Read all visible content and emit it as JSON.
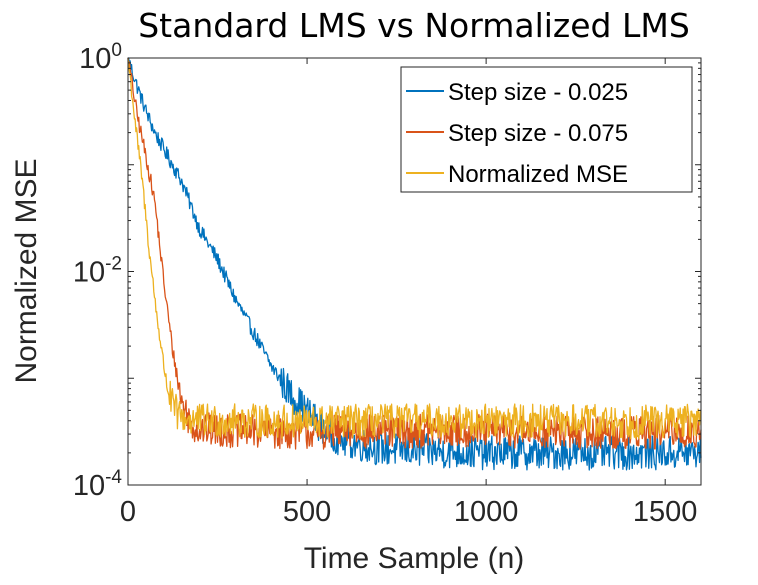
{
  "chart_data": {
    "type": "line",
    "title": "Standard LMS vs Normalized LMS",
    "xlabel": "Time Sample (n)",
    "ylabel": "Normalized MSE",
    "xlim": [
      0,
      1600
    ],
    "ylim": [
      0.0001,
      1
    ],
    "y_scale": "log",
    "grid": false,
    "x_ticks": [
      {
        "value": 0,
        "label": "0"
      },
      {
        "value": 500,
        "label": "500"
      },
      {
        "value": 1000,
        "label": "1000"
      },
      {
        "value": 1500,
        "label": "1500"
      }
    ],
    "y_ticks": [
      {
        "value": 0.0001,
        "base": "10",
        "exp": "-4"
      },
      {
        "value": 0.01,
        "base": "10",
        "exp": "-2"
      },
      {
        "value": 1,
        "base": "10",
        "exp": "0"
      }
    ],
    "legend_position": "top-right",
    "series": [
      {
        "name": "Step size - 0.025",
        "color": "#0072BD",
        "x": [
          0,
          25,
          50,
          75,
          100,
          150,
          200,
          250,
          300,
          350,
          400,
          450,
          500,
          550,
          600,
          700,
          800,
          1000,
          1200,
          1400,
          1600
        ],
        "y": [
          1,
          0.55,
          0.32,
          0.2,
          0.14,
          0.07,
          0.025,
          0.013,
          0.0055,
          0.0027,
          0.0013,
          0.00075,
          0.00048,
          0.00033,
          0.00026,
          0.00022,
          0.00021,
          0.0002,
          0.0002,
          0.0002,
          0.0002
        ]
      },
      {
        "name": "Step size - 0.075",
        "color": "#D95319",
        "x": [
          0,
          25,
          50,
          75,
          100,
          125,
          150,
          175,
          200,
          300,
          500,
          700,
          1000,
          1300,
          1600
        ],
        "y": [
          1,
          0.3,
          0.12,
          0.045,
          0.008,
          0.0018,
          0.0006,
          0.00038,
          0.00033,
          0.00032,
          0.00031,
          0.00032,
          0.00032,
          0.00031,
          0.00031
        ]
      },
      {
        "name": "Normalized MSE",
        "color": "#EDB120",
        "x": [
          0,
          20,
          40,
          60,
          80,
          100,
          120,
          140,
          160,
          200,
          300,
          500,
          800,
          1100,
          1400,
          1600
        ],
        "y": [
          1,
          0.25,
          0.07,
          0.015,
          0.004,
          0.0013,
          0.0006,
          0.00045,
          0.00042,
          0.0004,
          0.0004,
          0.00039,
          0.0004,
          0.0004,
          0.00039,
          0.0004
        ]
      }
    ]
  }
}
